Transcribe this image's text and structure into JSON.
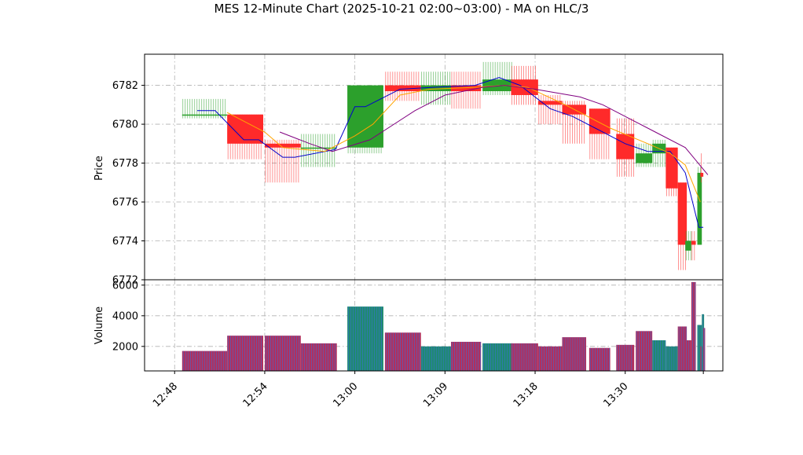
{
  "chart_data": {
    "type": "candlestick",
    "title": "MES 12-Minute Chart (2025-10-21 02:00~03:00) - MA on HLC/3",
    "price_panel": {
      "ylabel": "Price",
      "ylim": [
        6772,
        6783.6
      ],
      "yticks": [
        "6772",
        "6774",
        "6776",
        "6778",
        "6780",
        "6782"
      ],
      "grid": true
    },
    "volume_panel": {
      "ylabel": "Volume",
      "ylim": [
        400,
        6350
      ],
      "yticks": [
        "2000",
        "4000",
        "6000"
      ],
      "grid": true
    },
    "x_tick_labels": [
      "12:48",
      "12:54",
      "13:00",
      "13:09",
      "13:18",
      "13:30"
    ],
    "x_tick_positions": [
      0,
      6,
      12,
      18,
      24,
      30
    ],
    "x_range": [
      -2,
      36.5
    ],
    "colors": {
      "up": "#2ca02c",
      "down": "#ff2a2a",
      "volume_up": "#1f8a70",
      "volume_down": "#b0305e",
      "ma_fast": "#0000cc",
      "ma_mid": "#ffa500",
      "ma_slow": "#800080"
    },
    "candles": [
      {
        "t": 0.5,
        "w": 3.0,
        "o": 6780.5,
        "h": 6781.3,
        "l": 6780.3,
        "c": 6780.5,
        "up": true
      },
      {
        "t": 3.5,
        "w": 2.4,
        "o": 6780.5,
        "h": 6780.5,
        "l": 6778.2,
        "c": 6779.0,
        "up": false
      },
      {
        "t": 6.0,
        "w": 2.4,
        "o": 6779.0,
        "h": 6779.2,
        "l": 6777.0,
        "c": 6778.8,
        "up": false
      },
      {
        "t": 8.4,
        "w": 2.4,
        "o": 6778.8,
        "h": 6779.5,
        "l": 6777.8,
        "c": 6778.8,
        "up": true
      },
      {
        "t": 11.5,
        "w": 2.4,
        "o": 6778.8,
        "h": 6782.0,
        "l": 6778.5,
        "c": 6782.0,
        "up": true
      },
      {
        "t": 14.0,
        "w": 2.4,
        "o": 6782.0,
        "h": 6782.7,
        "l": 6781.2,
        "c": 6781.7,
        "up": false
      },
      {
        "t": 16.4,
        "w": 2.0,
        "o": 6781.7,
        "h": 6782.7,
        "l": 6781.0,
        "c": 6782.0,
        "up": true
      },
      {
        "t": 18.4,
        "w": 2.0,
        "o": 6782.0,
        "h": 6782.7,
        "l": 6780.8,
        "c": 6781.7,
        "up": false
      },
      {
        "t": 20.5,
        "w": 2.0,
        "o": 6781.7,
        "h": 6783.2,
        "l": 6781.5,
        "c": 6782.3,
        "up": true
      },
      {
        "t": 22.4,
        "w": 1.8,
        "o": 6782.3,
        "h": 6783.0,
        "l": 6781.0,
        "c": 6781.5,
        "up": false
      },
      {
        "t": 24.2,
        "w": 1.6,
        "o": 6781.2,
        "h": 6781.5,
        "l": 6780.0,
        "c": 6781.0,
        "up": false
      },
      {
        "t": 25.8,
        "w": 1.6,
        "o": 6781.0,
        "h": 6781.2,
        "l": 6779.0,
        "c": 6780.5,
        "up": false
      },
      {
        "t": 27.6,
        "w": 1.4,
        "o": 6780.8,
        "h": 6780.8,
        "l": 6778.2,
        "c": 6779.5,
        "up": false
      },
      {
        "t": 29.4,
        "w": 1.2,
        "o": 6779.5,
        "h": 6780.3,
        "l": 6777.3,
        "c": 6778.2,
        "up": false
      },
      {
        "t": 30.7,
        "w": 1.1,
        "o": 6778.0,
        "h": 6779.0,
        "l": 6777.8,
        "c": 6778.5,
        "up": true
      },
      {
        "t": 31.8,
        "w": 0.9,
        "o": 6778.5,
        "h": 6779.2,
        "l": 6777.8,
        "c": 6779.0,
        "up": true
      },
      {
        "t": 32.7,
        "w": 0.8,
        "o": 6778.8,
        "h": 6778.8,
        "l": 6776.3,
        "c": 6776.7,
        "up": false
      },
      {
        "t": 33.5,
        "w": 0.6,
        "o": 6777.0,
        "h": 6777.0,
        "l": 6772.5,
        "c": 6773.8,
        "up": false
      },
      {
        "t": 34.0,
        "w": 0.4,
        "o": 6773.5,
        "h": 6774.5,
        "l": 6773.0,
        "c": 6774.0,
        "up": true
      },
      {
        "t": 34.4,
        "w": 0.3,
        "o": 6774.0,
        "h": 6774.5,
        "l": 6773.0,
        "c": 6773.8,
        "up": false
      },
      {
        "t": 34.8,
        "w": 0.3,
        "o": 6773.8,
        "h": 6777.8,
        "l": 6773.8,
        "c": 6777.5,
        "up": true
      },
      {
        "t": 35.0,
        "w": 0.2,
        "o": 6777.5,
        "h": 6778.5,
        "l": 6777.0,
        "c": 6777.3,
        "up": false
      }
    ],
    "volume": [
      {
        "t": 0.5,
        "w": 3.0,
        "v": 1700,
        "up": false
      },
      {
        "t": 3.5,
        "w": 2.4,
        "v": 2700,
        "up": false
      },
      {
        "t": 6.0,
        "w": 2.4,
        "v": 2700,
        "up": false
      },
      {
        "t": 8.4,
        "w": 2.4,
        "v": 2200,
        "up": false
      },
      {
        "t": 11.5,
        "w": 2.4,
        "v": 4600,
        "up": true
      },
      {
        "t": 14.0,
        "w": 2.4,
        "v": 2900,
        "up": false
      },
      {
        "t": 16.4,
        "w": 2.0,
        "v": 2000,
        "up": true
      },
      {
        "t": 18.4,
        "w": 2.0,
        "v": 2300,
        "up": false
      },
      {
        "t": 20.5,
        "w": 2.0,
        "v": 2200,
        "up": true
      },
      {
        "t": 22.4,
        "w": 1.8,
        "v": 2200,
        "up": false
      },
      {
        "t": 24.2,
        "w": 1.6,
        "v": 2000,
        "up": false
      },
      {
        "t": 25.8,
        "w": 1.6,
        "v": 2600,
        "up": false
      },
      {
        "t": 27.6,
        "w": 1.4,
        "v": 1900,
        "up": false
      },
      {
        "t": 29.4,
        "w": 1.2,
        "v": 2100,
        "up": false
      },
      {
        "t": 30.7,
        "w": 1.1,
        "v": 3000,
        "up": false
      },
      {
        "t": 31.8,
        "w": 0.9,
        "v": 2400,
        "up": true
      },
      {
        "t": 32.7,
        "w": 0.8,
        "v": 2000,
        "up": true
      },
      {
        "t": 33.5,
        "w": 0.6,
        "v": 3300,
        "up": false
      },
      {
        "t": 34.0,
        "w": 0.4,
        "v": 2400,
        "up": false
      },
      {
        "t": 34.4,
        "w": 0.3,
        "v": 6200,
        "up": false
      },
      {
        "t": 34.8,
        "w": 0.3,
        "v": 3400,
        "up": true
      },
      {
        "t": 35.0,
        "w": 0.2,
        "v": 2000,
        "up": false
      },
      {
        "t": 35.1,
        "w": 0.15,
        "v": 4100,
        "up": true
      },
      {
        "t": 35.2,
        "w": 0.12,
        "v": 3200,
        "up": false
      }
    ],
    "moving_averages": [
      {
        "color": "#0000cc",
        "points": [
          [
            1.5,
            6780.7
          ],
          [
            2.7,
            6780.7
          ],
          [
            4.6,
            6779.2
          ],
          [
            5.6,
            6779.2
          ],
          [
            7.2,
            6778.3
          ],
          [
            8.0,
            6778.3
          ],
          [
            10.7,
            6778.7
          ],
          [
            12.0,
            6780.9
          ],
          [
            12.7,
            6780.9
          ],
          [
            15.0,
            6781.8
          ],
          [
            17.2,
            6781.9
          ],
          [
            20.0,
            6782.0
          ],
          [
            21.6,
            6782.4
          ],
          [
            23.0,
            6782.0
          ],
          [
            25.0,
            6780.8
          ],
          [
            26.5,
            6780.4
          ],
          [
            28.0,
            6779.8
          ],
          [
            30.0,
            6779.0
          ],
          [
            31.5,
            6778.6
          ],
          [
            33.0,
            6778.6
          ],
          [
            34.0,
            6777.5
          ],
          [
            34.9,
            6774.7
          ],
          [
            35.2,
            6774.7
          ]
        ]
      },
      {
        "color": "#ffa500",
        "points": [
          [
            3.5,
            6780.6
          ],
          [
            6.0,
            6779.6
          ],
          [
            7.2,
            6778.8
          ],
          [
            10.0,
            6778.6
          ],
          [
            12.0,
            6779.4
          ],
          [
            13.2,
            6780.0
          ],
          [
            15.0,
            6781.5
          ],
          [
            17.0,
            6781.8
          ],
          [
            20.0,
            6781.9
          ],
          [
            22.0,
            6782.0
          ],
          [
            23.5,
            6781.9
          ],
          [
            26.0,
            6781.0
          ],
          [
            29.0,
            6779.8
          ],
          [
            31.5,
            6779.0
          ],
          [
            33.0,
            6778.5
          ],
          [
            34.0,
            6777.9
          ],
          [
            35.0,
            6776.0
          ]
        ]
      },
      {
        "color": "#800080",
        "points": [
          [
            7.0,
            6779.6
          ],
          [
            9.0,
            6779.0
          ],
          [
            10.5,
            6778.6
          ],
          [
            13.0,
            6779.2
          ],
          [
            16.0,
            6780.7
          ],
          [
            18.0,
            6781.5
          ],
          [
            20.5,
            6781.9
          ],
          [
            22.0,
            6782.0
          ],
          [
            24.0,
            6781.8
          ],
          [
            27.0,
            6781.4
          ],
          [
            28.5,
            6781.0
          ],
          [
            30.0,
            6780.4
          ],
          [
            32.0,
            6779.6
          ],
          [
            34.0,
            6778.8
          ],
          [
            35.5,
            6777.4
          ]
        ]
      }
    ]
  }
}
